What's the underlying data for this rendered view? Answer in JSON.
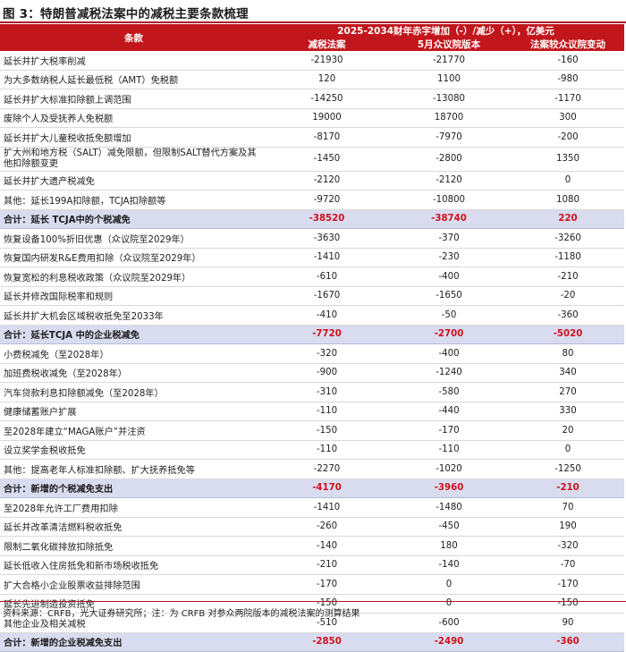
{
  "title": "图 3：特朗普减税法案中的减税主要条款梳理",
  "header": {
    "col_item": "条款",
    "span_label": "2025-2034财年赤字增加（-）/减少（+），亿美元",
    "col_a": "减税法案",
    "col_b": "5月众议院版本",
    "col_c": "法案较众议院变动"
  },
  "rows": [
    {
      "label": "延长并扩大税率削减",
      "a": "-21930",
      "b": "-21770",
      "c": "-160"
    },
    {
      "label": "为大多数纳税人延长最低税（AMT）免税额",
      "a": "120",
      "b": "1100",
      "c": "-980"
    },
    {
      "label": "延长并扩大标准扣除额上调范围",
      "a": "-14250",
      "b": "-13080",
      "c": "-1170"
    },
    {
      "label": "废除个人及受抚养人免税额",
      "a": "19000",
      "b": "18700",
      "c": "300"
    },
    {
      "label": "延长并扩大儿童税收抵免额增加",
      "a": "-8170",
      "b": "-7970",
      "c": "-200"
    },
    {
      "label": "扩大州和地方税（SALT）减免限额，但限制SALT替代方案及其他扣除额变更",
      "a": "-1450",
      "b": "-2800",
      "c": "1350"
    },
    {
      "label": "延长并扩大遗产税减免",
      "a": "-2120",
      "b": "-2120",
      "c": "0"
    },
    {
      "label": "其他：延长199A扣除额，TCJA扣除额等",
      "a": "-9720",
      "b": "-10800",
      "c": "1080"
    },
    {
      "label": "合计：延长 TCJA中的个税减免",
      "a": "-38520",
      "b": "-38740",
      "c": "220",
      "sum": true
    },
    {
      "label": "恢复设备100%折旧优惠（众议院至2029年）",
      "a": "-3630",
      "b": "-370",
      "c": "-3260"
    },
    {
      "label": "恢复国内研发R&E费用扣除（众议院至2029年）",
      "a": "-1410",
      "b": "-230",
      "c": "-1180"
    },
    {
      "label": "恢复宽松的利息税收政策（众议院至2029年）",
      "a": "-610",
      "b": "-400",
      "c": "-210"
    },
    {
      "label": "延长并修改国际税率和规则",
      "a": "-1670",
      "b": "-1650",
      "c": "-20"
    },
    {
      "label": "延长并扩大机会区域税收抵免至2033年",
      "a": "-410",
      "b": "-50",
      "c": "-360"
    },
    {
      "label": "合计：延长TCJA 中的企业税减免",
      "a": "-7720",
      "b": "-2700",
      "c": "-5020",
      "sum": true
    },
    {
      "label": "小费税减免（至2028年）",
      "a": "-320",
      "b": "-400",
      "c": "80"
    },
    {
      "label": "加班费税收减免（至2028年）",
      "a": "-900",
      "b": "-1240",
      "c": "340"
    },
    {
      "label": "汽车贷款利息扣除额减免（至2028年）",
      "a": "-310",
      "b": "-580",
      "c": "270"
    },
    {
      "label": "健康储蓄账户扩展",
      "a": "-110",
      "b": "-440",
      "c": "330"
    },
    {
      "label": "至2028年建立“MAGA账户”并注资",
      "a": "-150",
      "b": "-170",
      "c": "20"
    },
    {
      "label": "设立奖学金税收抵免",
      "a": "-110",
      "b": "-110",
      "c": "0"
    },
    {
      "label": "其他：提高老年人标准扣除额、扩大抚养抵免等",
      "a": "-2270",
      "b": "-1020",
      "c": "-1250"
    },
    {
      "label": "合计：新增的个税减免支出",
      "a": "-4170",
      "b": "-3960",
      "c": "-210",
      "sum": true
    },
    {
      "label": "至2028年允许工厂费用扣除",
      "a": "-1410",
      "b": "-1480",
      "c": "70"
    },
    {
      "label": "延长并改革清洁燃料税收抵免",
      "a": "-260",
      "b": "-450",
      "c": "190"
    },
    {
      "label": "限制二氧化碳排放扣除抵免",
      "a": "-140",
      "b": "180",
      "c": "-320"
    },
    {
      "label": "延长低收入住房抵免和新市场税收抵免",
      "a": "-210",
      "b": "-140",
      "c": "-70"
    },
    {
      "label": "扩大合格小企业股票收益排除范围",
      "a": "-170",
      "b": "0",
      "c": "-170"
    },
    {
      "label": "延长先进制造投资抵免",
      "a": "-150",
      "b": "0",
      "c": "-150"
    },
    {
      "label": "其他企业及相关减税",
      "a": "-510",
      "b": "-600",
      "c": "90"
    },
    {
      "label": "合计：新增的企业税减免支出",
      "a": "-2850",
      "b": "-2490",
      "c": "-360",
      "sum": true
    }
  ],
  "source": "资料来源：CRFB，光大证券研究所；注：为 CRFB 对参众两院版本的减税法案的测算结果",
  "colors": {
    "accent": "#c1161c",
    "sum_bg": "#d9dcef",
    "sum_num": "#d0121d"
  }
}
